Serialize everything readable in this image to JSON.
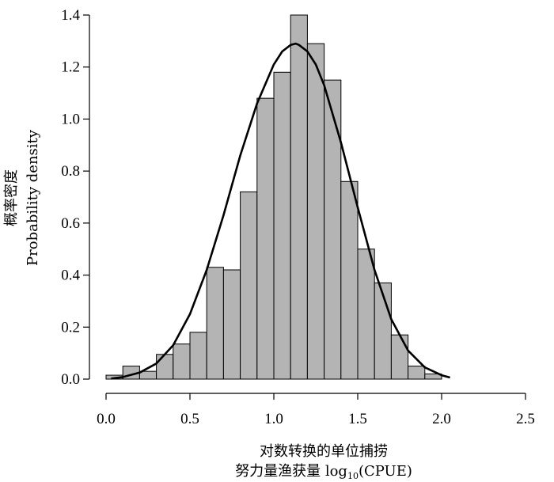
{
  "chart_data": {
    "type": "bar",
    "subtype": "histogram-with-density-curve",
    "ylabel_cn": "概率密度",
    "ylabel_en": "Probability density",
    "xlabel_cn": "对数转换的单位捕捞",
    "xlabel_en_prefix": "努力量渔获量 log",
    "xlabel_en_sub": "10",
    "xlabel_en_suffix": "(CPUE)",
    "xlim": [
      0,
      2.5
    ],
    "ylim": [
      0,
      1.4
    ],
    "xticks": [
      0.0,
      0.5,
      1.0,
      1.5,
      2.0,
      2.5
    ],
    "xtick_labels": [
      "0.0",
      "0.5",
      "1.0",
      "1.5",
      "2.0",
      "2.5"
    ],
    "yticks": [
      0.0,
      0.2,
      0.4,
      0.6,
      0.8,
      1.0,
      1.2,
      1.4
    ],
    "ytick_labels": [
      "0.0",
      "0.2",
      "0.4",
      "0.6",
      "0.8",
      "1.0",
      "1.2",
      "1.4"
    ],
    "bin_width": 0.1,
    "bin_starts": [
      0.0,
      0.1,
      0.2,
      0.3,
      0.4,
      0.5,
      0.6,
      0.7,
      0.8,
      0.9,
      1.0,
      1.1,
      1.2,
      1.3,
      1.4,
      1.5,
      1.6,
      1.7,
      1.8,
      1.9
    ],
    "values": [
      0.015,
      0.05,
      0.03,
      0.095,
      0.135,
      0.18,
      0.43,
      0.42,
      0.72,
      1.08,
      1.18,
      1.4,
      1.29,
      1.15,
      0.76,
      0.5,
      0.37,
      0.17,
      0.05,
      0.02
    ],
    "density_curve": {
      "x": [
        0.03,
        0.1,
        0.2,
        0.3,
        0.4,
        0.5,
        0.6,
        0.7,
        0.8,
        0.9,
        1.0,
        1.05,
        1.1,
        1.13,
        1.15,
        1.2,
        1.25,
        1.3,
        1.4,
        1.5,
        1.6,
        1.7,
        1.8,
        1.9,
        2.0,
        2.05
      ],
      "y": [
        0.002,
        0.008,
        0.025,
        0.06,
        0.13,
        0.25,
        0.42,
        0.63,
        0.86,
        1.06,
        1.21,
        1.26,
        1.285,
        1.29,
        1.285,
        1.26,
        1.21,
        1.13,
        0.91,
        0.66,
        0.42,
        0.23,
        0.11,
        0.045,
        0.015,
        0.006
      ]
    },
    "grid": false,
    "colors": {
      "bar_fill": "#b4b4b4",
      "bar_edge": "#000000",
      "curve": "#000000"
    }
  }
}
